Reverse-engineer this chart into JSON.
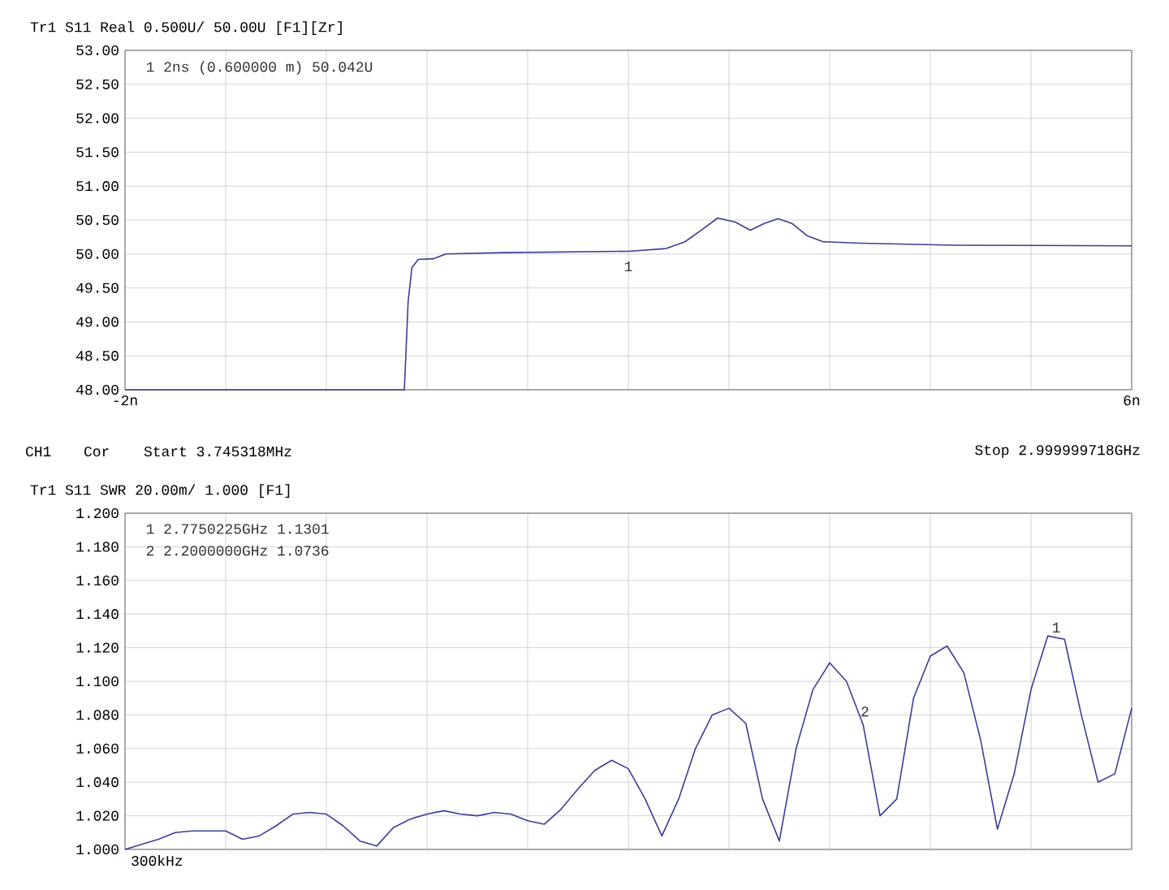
{
  "chart_data": [
    {
      "type": "line",
      "title": "Tr1 S11 Real 0.500U/ 50.00U     [F1][Zr]",
      "x": [
        -2,
        0.22,
        0.25,
        0.28,
        0.33,
        0.45,
        0.55,
        1.0,
        2.0,
        2.3,
        2.45,
        2.6,
        2.71,
        2.85,
        2.97,
        3.08,
        3.19,
        3.3,
        3.42,
        3.55,
        3.85,
        4.6,
        6.0
      ],
      "series": [
        {
          "color": "#3c3c96",
          "values": [
            48,
            48,
            49.3,
            49.8,
            49.92,
            49.93,
            50.0,
            50.02,
            50.04,
            50.08,
            50.18,
            50.38,
            50.53,
            50.47,
            50.35,
            50.45,
            50.52,
            50.45,
            50.27,
            50.18,
            50.16,
            50.13,
            50.12
          ]
        }
      ],
      "xlim": [
        -2,
        6
      ],
      "xticks": [
        {
          "value": -2,
          "label": "-2n"
        },
        {
          "value": -1.2,
          "label": null
        },
        {
          "value": -0.4,
          "label": null
        },
        {
          "value": 0.4,
          "label": null
        },
        {
          "value": 1.2,
          "label": null
        },
        {
          "value": 2,
          "label": null
        },
        {
          "value": 2.8,
          "label": null
        },
        {
          "value": 3.6,
          "label": null
        },
        {
          "value": 4.4,
          "label": null
        },
        {
          "value": 5.2,
          "label": null
        },
        {
          "value": 6,
          "label": "6n"
        }
      ],
      "ylim": [
        48,
        53
      ],
      "yticks": [
        {
          "value": 48,
          "label": "48.00"
        },
        {
          "value": 48.5,
          "label": "48.50"
        },
        {
          "value": 49,
          "label": "49.00"
        },
        {
          "value": 49.5,
          "label": "49.50"
        },
        {
          "value": 50,
          "label": "50.00"
        },
        {
          "value": 50.5,
          "label": "50.50"
        },
        {
          "value": 51,
          "label": "51.00"
        },
        {
          "value": 51.5,
          "label": "51.50"
        },
        {
          "value": 52,
          "label": "52.00"
        },
        {
          "value": 52.5,
          "label": "52.50"
        },
        {
          "value": 53,
          "label": "53.00"
        }
      ],
      "grid": true,
      "annotations": [
        "1 2ns (0.600000 m) 50.042U",
        {
          "text": "1",
          "x": 2,
          "y": 50.042
        },
        "CH1",
        "Cor",
        "Start 3.745318MHz",
        "Stop 2.999999718GHz"
      ]
    },
    {
      "type": "line",
      "title": "Tr1 S11 SWR 20.00m/ 1.000     [F1]",
      "categories": [
        null,
        null,
        null,
        null,
        null,
        null,
        null,
        null,
        null,
        null,
        null,
        null,
        null,
        null,
        null,
        null,
        null,
        null,
        null,
        null,
        null,
        null,
        null,
        null,
        null,
        null,
        null,
        null,
        null,
        null,
        null,
        null,
        null,
        null,
        null,
        null,
        null,
        null,
        null,
        null,
        null,
        null,
        null,
        null,
        null,
        null,
        null,
        null,
        null,
        null,
        null,
        null,
        null,
        null,
        null,
        null,
        null,
        null,
        null,
        null,
        null
      ],
      "series": [
        {
          "color": "#3c3c96",
          "values": [
            1.0,
            1.003,
            1.006,
            1.01,
            1.011,
            1.011,
            1.011,
            1.006,
            1.008,
            1.014,
            1.021,
            1.022,
            1.021,
            1.014,
            1.005,
            1.002,
            1.013,
            1.018,
            1.021,
            1.023,
            1.021,
            1.02,
            1.022,
            1.021,
            1.017,
            1.015,
            1.024,
            1.036,
            1.047,
            1.053,
            1.048,
            1.03,
            1.008,
            1.03,
            1.06,
            1.08,
            1.084,
            1.075,
            1.03,
            1.005,
            1.06,
            1.095,
            1.111,
            1.1,
            1.074,
            1.02,
            1.03,
            1.09,
            1.115,
            1.121,
            1.105,
            1.065,
            1.012,
            1.045,
            1.095,
            1.127,
            1.125,
            1.08,
            1.04,
            1.045,
            1.084
          ]
        }
      ],
      "ylim": [
        1.0,
        1.2
      ],
      "yticks": [
        {
          "value": 1.0,
          "label": "1.000"
        },
        {
          "value": 1.02,
          "label": "1.020"
        },
        {
          "value": 1.04,
          "label": "1.040"
        },
        {
          "value": 1.06,
          "label": "1.060"
        },
        {
          "value": 1.08,
          "label": "1.080"
        },
        {
          "value": 1.1,
          "label": "1.100"
        },
        {
          "value": 1.12,
          "label": "1.120"
        },
        {
          "value": 1.14,
          "label": "1.140"
        },
        {
          "value": 1.16,
          "label": "1.160"
        },
        {
          "value": 1.18,
          "label": "1.180"
        },
        {
          "value": 1.2,
          "label": "1.200"
        }
      ],
      "tick_labels": "y",
      "grid": true,
      "annotations": [
        "1 2.7750225GHz 1.1301",
        "2 2.2000000GHz 1.0736",
        "1",
        "2",
        "300kHz"
      ]
    }
  ]
}
